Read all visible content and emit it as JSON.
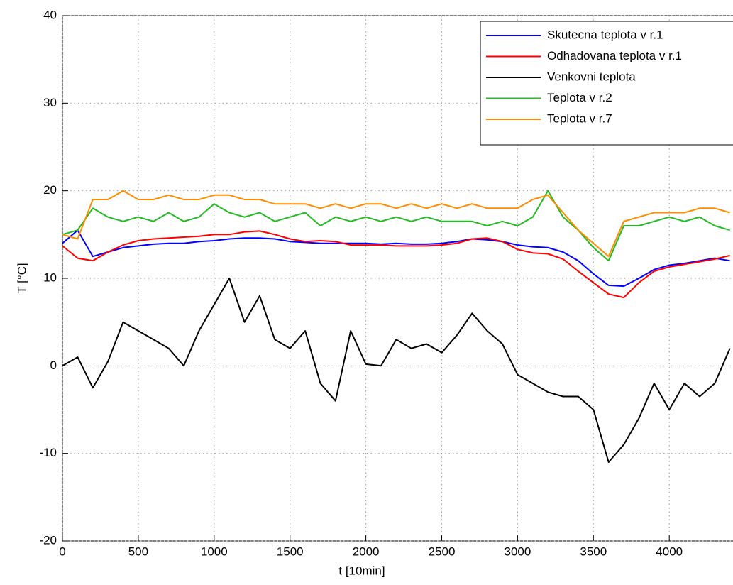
{
  "chart_data": {
    "type": "line",
    "xlabel": "t [10min]",
    "ylabel": "T [°C]",
    "x": [
      0,
      100,
      200,
      300,
      400,
      500,
      600,
      700,
      800,
      900,
      1000,
      1100,
      1200,
      1300,
      1400,
      1500,
      1600,
      1700,
      1800,
      1900,
      2000,
      2100,
      2200,
      2300,
      2400,
      2500,
      2600,
      2700,
      2800,
      2900,
      3000,
      3100,
      3200,
      3300,
      3400,
      3500,
      3600,
      3700,
      3800,
      3900,
      4000,
      4100,
      4200,
      4300,
      4400
    ],
    "series": [
      {
        "name": "Skutecna teplota v r.1",
        "color": "#0000ff",
        "values": [
          14,
          15.5,
          12.5,
          13,
          13.5,
          13.7,
          13.9,
          14,
          14,
          14.2,
          14.3,
          14.5,
          14.6,
          14.6,
          14.5,
          14.2,
          14.1,
          14,
          14,
          14,
          14,
          13.9,
          14,
          13.9,
          13.9,
          14,
          14.2,
          14.5,
          14.4,
          14.2,
          13.8,
          13.6,
          13.5,
          13,
          12,
          10.5,
          9.2,
          9.1,
          10,
          11,
          11.5,
          11.7,
          12,
          12.3,
          12
        ]
      },
      {
        "name": "Odhadovana teplota v r.1",
        "color": "#ff0000",
        "values": [
          13.7,
          12.3,
          12,
          13,
          13.8,
          14.3,
          14.5,
          14.6,
          14.7,
          14.8,
          15,
          15,
          15.3,
          15.4,
          15,
          14.5,
          14.2,
          14.3,
          14.2,
          13.8,
          13.8,
          13.8,
          13.7,
          13.7,
          13.7,
          13.8,
          14,
          14.5,
          14.6,
          14.2,
          13.3,
          12.9,
          12.8,
          12.2,
          10.8,
          9.5,
          8.2,
          7.8,
          9.5,
          10.8,
          11.3,
          11.6,
          11.9,
          12.2,
          12.6
        ]
      },
      {
        "name": "Venkovni teplota",
        "color": "#000000",
        "values": [
          0,
          1,
          -2.5,
          0.5,
          5,
          4,
          3,
          2,
          0,
          4,
          7,
          10,
          5,
          8,
          3,
          2,
          4,
          -2,
          -4,
          4,
          0.2,
          0,
          3,
          2,
          2.5,
          1.5,
          3.5,
          6,
          4,
          2.5,
          -1,
          -2,
          -3,
          -3.5,
          -3.5,
          -5,
          -11,
          -9,
          -6,
          -2,
          -5,
          -2,
          -3.5,
          -2,
          2
        ]
      },
      {
        "name": "Teplota v r.2",
        "color": "#22bb22",
        "values": [
          15,
          15.5,
          18,
          17,
          16.5,
          17,
          16.5,
          17.5,
          16.5,
          17,
          18.5,
          17.5,
          17,
          17.5,
          16.5,
          17,
          17.5,
          16,
          17,
          16.5,
          17,
          16.5,
          17,
          16.5,
          17,
          16.5,
          16.5,
          16.5,
          16,
          16.5,
          16,
          17,
          20,
          17,
          15.5,
          13.5,
          12,
          16,
          16,
          16.5,
          17,
          16.5,
          17,
          16,
          15.5
        ]
      },
      {
        "name": "Teplota v r.7",
        "color": "#ff8c00",
        "values": [
          15,
          14.5,
          19,
          19,
          20,
          19,
          19,
          19.5,
          19,
          19,
          19.5,
          19.5,
          19,
          19,
          18.5,
          18.5,
          18.5,
          18,
          18.5,
          18,
          18.5,
          18.5,
          18,
          18.5,
          18,
          18.5,
          18,
          18.5,
          18,
          18,
          18,
          19,
          19.5,
          17.5,
          15.5,
          14,
          12.5,
          16.5,
          17,
          17.5,
          17.5,
          17.5,
          18,
          18,
          17.5
        ]
      }
    ],
    "xlim": [
      0,
      4420
    ],
    "ylim": [
      -20,
      40
    ],
    "xticks": [
      0,
      500,
      1000,
      1500,
      2000,
      2500,
      3000,
      3500,
      4000
    ],
    "yticks": [
      -20,
      -10,
      0,
      10,
      20,
      30,
      40
    ],
    "grid": true,
    "legend": "upper right"
  }
}
